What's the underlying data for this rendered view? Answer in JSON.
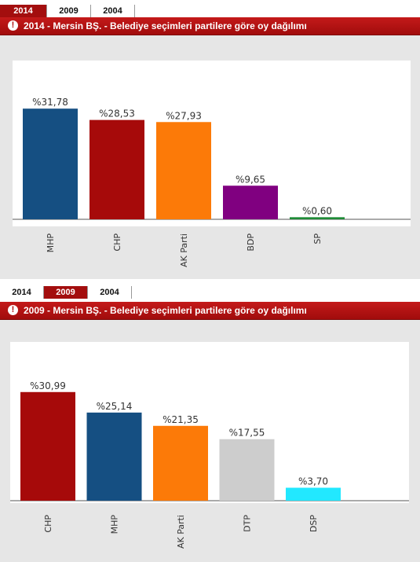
{
  "panels": [
    {
      "tabs": [
        {
          "label": "2014",
          "active": true
        },
        {
          "label": "2009",
          "active": false
        },
        {
          "label": "2004",
          "active": false
        }
      ],
      "title": "2014 - Mersin BŞ. - Belediye seçimleri partilere göre oy dağılımı",
      "chart_data": {
        "type": "bar",
        "title": "",
        "ylim": [
          0,
          35
        ],
        "categories": [
          "MHP",
          "CHP",
          "AK Parti",
          "BDP",
          "SP"
        ],
        "values": [
          31.78,
          28.53,
          27.93,
          9.65,
          0.6
        ],
        "value_labels": [
          "%31,78",
          "%28,53",
          "%27,93",
          "%9,65",
          "%0,60"
        ],
        "colors": [
          "#154f82",
          "#a60a0a",
          "#fc7a08",
          "#800080",
          "#1e8a36"
        ]
      }
    },
    {
      "tabs": [
        {
          "label": "2014",
          "active": false
        },
        {
          "label": "2009",
          "active": true
        },
        {
          "label": "2004",
          "active": false
        }
      ],
      "title": "2009 - Mersin BŞ. - Belediye seçimleri partilere göre oy dağılımı",
      "chart_data": {
        "type": "bar",
        "title": "",
        "ylim": [
          0,
          35
        ],
        "categories": [
          "CHP",
          "MHP",
          "AK Parti",
          "DTP",
          "DSP"
        ],
        "values": [
          30.99,
          25.14,
          21.35,
          17.55,
          3.7
        ],
        "value_labels": [
          "%30,99",
          "%25,14",
          "%21,35",
          "%17,55",
          "%3,70"
        ],
        "colors": [
          "#a60a0a",
          "#154f82",
          "#fc7a08",
          "#cdcdcd",
          "#22e8ff"
        ]
      }
    }
  ]
}
